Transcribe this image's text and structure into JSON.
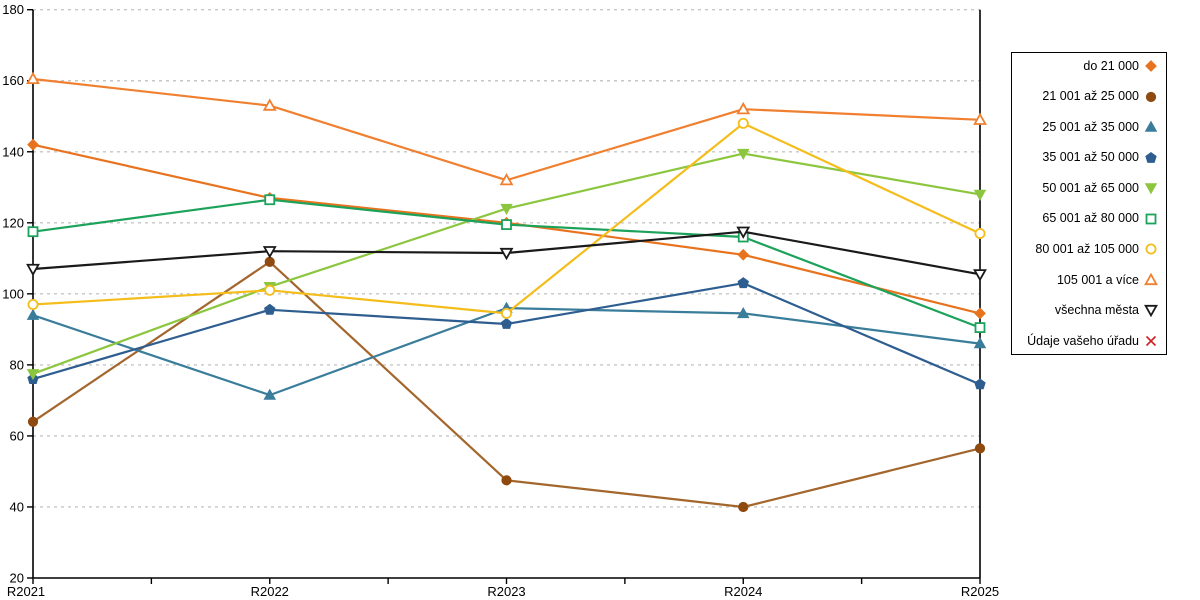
{
  "chart_data": {
    "type": "line",
    "title": "",
    "xlabel": "",
    "ylabel": "",
    "categories": [
      "R2021",
      "R2022",
      "R2023",
      "R2024",
      "R2025"
    ],
    "ylim": [
      20,
      180
    ],
    "yticks": [
      20,
      40,
      60,
      80,
      100,
      120,
      140,
      160,
      180
    ],
    "grid": "horizontal-dashed",
    "legend_position": "right",
    "background_color": "#FFFFFF",
    "gridline_color": "#C6C6C6",
    "axis_color": "#000000",
    "series": [
      {
        "name": "do 21 000",
        "marker": "diamond",
        "fill": "filled",
        "color": "#E8731F",
        "values": [
          142,
          127,
          120,
          111,
          94.5
        ]
      },
      {
        "name": "21 001 až 25 000",
        "marker": "circle",
        "fill": "filled",
        "color": "#A3662C",
        "marker_color": "#8F4A10",
        "values": [
          64,
          109,
          47.5,
          40,
          56.5
        ]
      },
      {
        "name": "25 001 až 35 000",
        "marker": "triangle-up",
        "fill": "filled",
        "color": "#3A7D9B",
        "values": [
          94,
          71.5,
          96,
          94.5,
          86
        ]
      },
      {
        "name": "35 001 až 50 000",
        "marker": "pentagon",
        "fill": "filled",
        "color": "#2E5E90",
        "values": [
          76,
          95.5,
          91.5,
          103,
          74.5
        ]
      },
      {
        "name": "50 001 až 65 000",
        "marker": "triangle-down",
        "fill": "filled",
        "color": "#8CC63F",
        "values": [
          77.5,
          102,
          124,
          139.5,
          128
        ]
      },
      {
        "name": "65 001 až 80 000",
        "marker": "square",
        "fill": "open",
        "color": "#1CA25A",
        "values": [
          117.5,
          126.5,
          119.5,
          116,
          90.5
        ]
      },
      {
        "name": "80 001 až 105 000",
        "marker": "circle",
        "fill": "open",
        "color": "#F4BD1C",
        "values": [
          97,
          101,
          94.5,
          148,
          117
        ]
      },
      {
        "name": "105 001 a více",
        "marker": "triangle-up",
        "fill": "open",
        "color": "#F08030",
        "values": [
          160.5,
          153,
          132,
          152,
          149
        ]
      },
      {
        "name": "všechna města",
        "marker": "triangle-down",
        "fill": "open",
        "color": "#1A1A1A",
        "values": [
          107,
          112,
          111.5,
          117.5,
          105.5
        ]
      },
      {
        "name": "Údaje vašeho úřadu",
        "marker": "x",
        "fill": "open",
        "color": "#CE2020",
        "values": [
          null,
          null,
          null,
          null,
          null
        ]
      }
    ]
  }
}
